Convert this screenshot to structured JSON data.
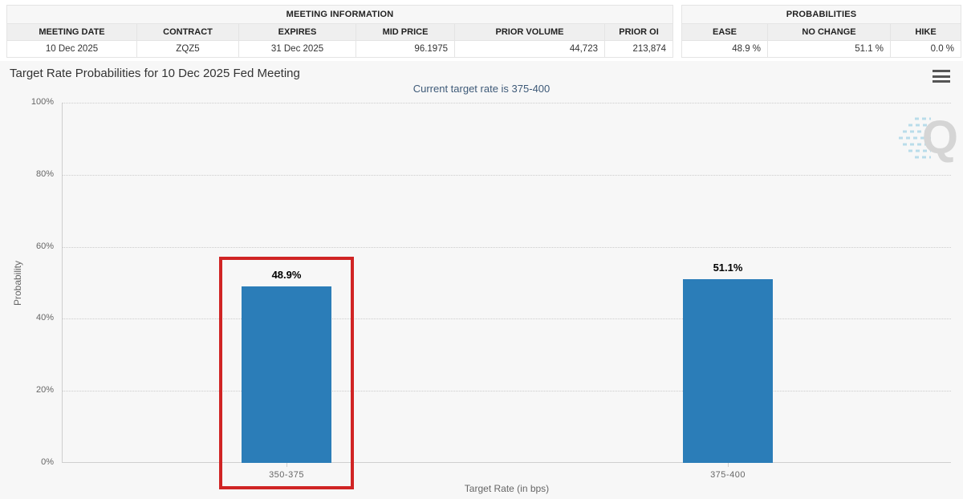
{
  "meeting_info": {
    "header": "MEETING INFORMATION",
    "columns": [
      "MEETING DATE",
      "CONTRACT",
      "EXPIRES",
      "MID PRICE",
      "PRIOR VOLUME",
      "PRIOR OI"
    ],
    "values": [
      "10 Dec 2025",
      "ZQZ5",
      "31 Dec 2025",
      "96.1975",
      "44,723",
      "213,874"
    ]
  },
  "probabilities": {
    "header": "PROBABILITIES",
    "columns": [
      "EASE",
      "NO CHANGE",
      "HIKE"
    ],
    "values": [
      "48.9 %",
      "51.1 %",
      "0.0 %"
    ]
  },
  "chart": {
    "title": "Target Rate Probabilities for 10 Dec 2025 Fed Meeting",
    "subtitle": "Current target rate is 375-400",
    "watermark_letter": "Q",
    "menu_icon": "hamburger-menu-icon"
  },
  "chart_data": {
    "type": "bar",
    "title": "Target Rate Probabilities for 10 Dec 2025 Fed Meeting",
    "subtitle": "Current target rate is 375-400",
    "categories": [
      "350-375",
      "375-400"
    ],
    "values": [
      48.9,
      51.1
    ],
    "data_labels": [
      "48.9%",
      "51.1%"
    ],
    "xlabel": "Target Rate (in bps)",
    "ylabel": "Probability",
    "ylim": [
      0,
      100
    ],
    "y_tick_labels": [
      "0%",
      "20%",
      "40%",
      "60%",
      "80%",
      "100%"
    ],
    "grid": "horizontal-dotted",
    "legend": "none",
    "bar_color": "#2b7db8",
    "highlighted_category": "350-375",
    "highlight_box_color": "#d02424",
    "chart_background": "#f7f7f7"
  }
}
